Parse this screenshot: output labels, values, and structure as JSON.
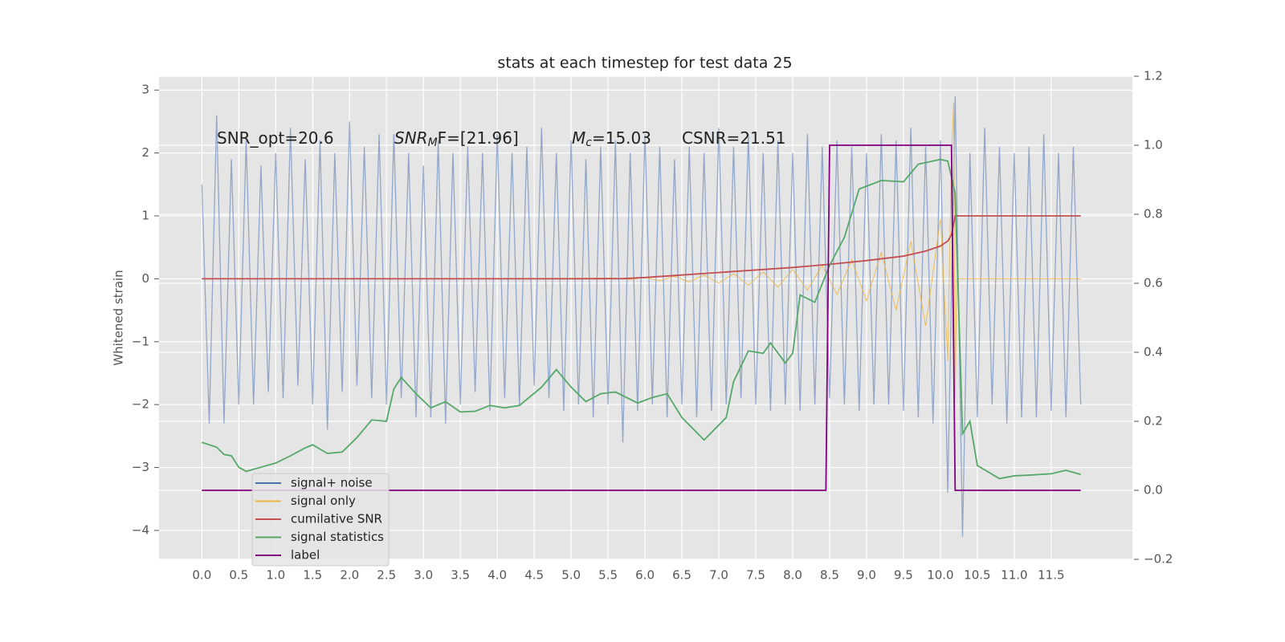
{
  "chart_data": {
    "type": "line",
    "title": "stats at each timestep for test data 25",
    "y_label": "Whitened strain",
    "annotations": [
      {
        "text": "SNR_opt=20.6"
      },
      {
        "italic": "SNR",
        "sub": "M",
        "text": "F=[21.96]"
      },
      {
        "italic": "M",
        "sub": "c",
        "text": "=15.03"
      },
      {
        "text": "CSNR=21.51"
      }
    ],
    "xlim": [
      -0.58,
      12.6
    ],
    "xticks": [
      {
        "value": 0,
        "label": "0.0"
      },
      0.5,
      {
        "value": 1,
        "label": "1.0"
      },
      1.5,
      {
        "value": 2,
        "label": "2.0"
      },
      2.5,
      {
        "value": 3,
        "label": "3.0"
      },
      3.5,
      {
        "value": 4,
        "label": "4.0"
      },
      4.5,
      {
        "value": 5,
        "label": "5.0"
      },
      5.5,
      {
        "value": 6,
        "label": "6.0"
      },
      6.5,
      {
        "value": 7,
        "label": "7.0"
      },
      7.5,
      {
        "value": 8,
        "label": "8.0"
      },
      8.5,
      {
        "value": 9,
        "label": "9.0"
      },
      9.5,
      {
        "value": 10,
        "label": "10.0"
      },
      10.5,
      {
        "value": 11,
        "label": "11.0"
      },
      11.5
    ],
    "ylim": [
      -4.46,
      3.22
    ],
    "yticks": [
      {
        "value": -4,
        "label": "−4"
      },
      {
        "value": -3,
        "label": "−3"
      },
      {
        "value": -2,
        "label": "−2"
      },
      {
        "value": -1,
        "label": "−1"
      },
      0,
      1,
      2,
      3
    ],
    "y2lim": [
      -0.2,
      1.2
    ],
    "y2ticks": [
      {
        "value": -0.2,
        "label": "−0.2"
      },
      {
        "value": 0,
        "label": "0.0"
      },
      {
        "value": 0.2,
        "label": "0.2"
      },
      {
        "value": 0.4,
        "label": "0.4"
      },
      {
        "value": 0.6,
        "label": "0.6"
      },
      {
        "value": 0.8,
        "label": "0.8"
      },
      {
        "value": 1,
        "label": "1.0"
      },
      {
        "value": 1.2,
        "label": "1.2"
      }
    ],
    "grid": true,
    "legend": "lower left",
    "series": [
      {
        "name": "signal+ noise",
        "color": "#4c72b0",
        "x": [
          0,
          0.1,
          0.2,
          0.3,
          0.4,
          0.5,
          0.6,
          0.7,
          0.8,
          0.9,
          1,
          1.1,
          1.2,
          1.3,
          1.4,
          1.5,
          1.6,
          1.7,
          1.8,
          1.9,
          2,
          2.1,
          2.2,
          2.3,
          2.4,
          2.5,
          2.6,
          2.7,
          2.8,
          2.9,
          3,
          3.1,
          3.2,
          3.3,
          3.4,
          3.5,
          3.6,
          3.7,
          3.8,
          3.9,
          4,
          4.1,
          4.2,
          4.3,
          4.4,
          4.5,
          4.6,
          4.7,
          4.8,
          4.9,
          5,
          5.1,
          5.2,
          5.3,
          5.4,
          5.5,
          5.6,
          5.7,
          5.8,
          5.9,
          6,
          6.1,
          6.2,
          6.3,
          6.4,
          6.5,
          6.6,
          6.7,
          6.8,
          6.9,
          7,
          7.1,
          7.2,
          7.3,
          7.4,
          7.5,
          7.6,
          7.7,
          7.8,
          7.9,
          8,
          8.1,
          8.2,
          8.3,
          8.4,
          8.5,
          8.6,
          8.7,
          8.8,
          8.9,
          9,
          9.1,
          9.2,
          9.3,
          9.4,
          9.5,
          9.6,
          9.7,
          9.8,
          9.9,
          10,
          10.1,
          10.2,
          10.3,
          10.4,
          10.5,
          10.6,
          10.7,
          10.8,
          10.9,
          11,
          11.1,
          11.2,
          11.3,
          11.4,
          11.5,
          11.6,
          11.7,
          11.8,
          11.9
        ],
        "values": [
          1.5,
          -2.3,
          2.6,
          -2.3,
          1.9,
          -2.0,
          2.2,
          -2.0,
          1.8,
          -1.8,
          2.0,
          -1.9,
          2.4,
          -1.7,
          1.9,
          -2.0,
          2.2,
          -2.4,
          2.0,
          -1.8,
          2.5,
          -1.7,
          2.1,
          -1.9,
          2.3,
          -2.0,
          2.3,
          -1.9,
          2.0,
          -2.2,
          1.8,
          -2.2,
          2.2,
          -2.3,
          2.0,
          -2.0,
          2.1,
          -1.8,
          2.0,
          -2.1,
          2.3,
          -1.9,
          2.0,
          -2.0,
          2.1,
          -1.7,
          2.4,
          -1.9,
          2.0,
          -2.1,
          2.2,
          -2.0,
          1.9,
          -2.2,
          2.1,
          -2.0,
          2.2,
          -2.6,
          2.0,
          -2.1,
          2.3,
          -2.0,
          2.1,
          -2.2,
          1.9,
          -2.0,
          2.1,
          -2.2,
          2.0,
          -2.1,
          2.4,
          -2.0,
          2.1,
          -1.9,
          2.3,
          -2.0,
          2.0,
          -2.1,
          2.2,
          -2.0,
          2.0,
          -2.1,
          2.3,
          -2.0,
          2.1,
          -1.9,
          2.2,
          -2.0,
          2.1,
          -2.1,
          2.0,
          -2.0,
          2.3,
          -2.0,
          2.2,
          -2.1,
          2.4,
          -2.2,
          2.1,
          -2.3,
          2.2,
          -3.4,
          2.9,
          -4.1,
          2.0,
          -2.2,
          2.4,
          -2.0,
          2.1,
          -2.3,
          2.0,
          -2.2,
          2.1,
          -2.2,
          2.3,
          -2.1,
          2.0,
          -2.2,
          2.1,
          -2.0
        ]
      },
      {
        "name": "signal only",
        "color": "#ecb540",
        "x": [
          0,
          5.6,
          5.8,
          6,
          6.2,
          6.4,
          6.6,
          6.8,
          7,
          7.2,
          7.4,
          7.6,
          7.8,
          8,
          8.2,
          8.4,
          8.6,
          8.8,
          9,
          9.2,
          9.4,
          9.6,
          9.8,
          10,
          10.1,
          10.15,
          10.18,
          10.2,
          10.22,
          11.9
        ],
        "values": [
          0,
          0.01,
          -0.01,
          0.02,
          -0.03,
          0.04,
          -0.05,
          0.06,
          -0.07,
          0.08,
          -0.1,
          0.11,
          -0.13,
          0.15,
          -0.18,
          0.21,
          -0.25,
          0.3,
          -0.35,
          0.42,
          -0.5,
          0.6,
          -0.75,
          0.95,
          -1.3,
          1.9,
          2.8,
          -1.9,
          0,
          0
        ]
      },
      {
        "name": "cumilative SNR",
        "color": "#c44e52",
        "x": [
          0,
          1,
          2,
          3,
          4,
          5,
          5.7,
          6,
          6.5,
          7,
          7.5,
          8,
          8.5,
          9,
          9.5,
          9.8,
          10,
          10.1,
          10.15,
          10.2,
          11.9
        ],
        "values": [
          0,
          0,
          0,
          0,
          0,
          0,
          0.003,
          0.02,
          0.06,
          0.1,
          0.14,
          0.18,
          0.23,
          0.29,
          0.36,
          0.44,
          0.52,
          0.6,
          0.7,
          1.0,
          1.0
        ]
      },
      {
        "name": "signal statistics",
        "color": "#55a868",
        "axis": "y2",
        "x": [
          0,
          0.2,
          0.3,
          0.4,
          0.5,
          0.6,
          0.8,
          1,
          1.2,
          1.4,
          1.5,
          1.7,
          1.9,
          2.1,
          2.3,
          2.5,
          2.6,
          2.7,
          2.9,
          3.1,
          3.3,
          3.5,
          3.7,
          3.9,
          4.1,
          4.3,
          4.6,
          4.8,
          5,
          5.2,
          5.4,
          5.6,
          5.9,
          6.1,
          6.3,
          6.5,
          6.8,
          7.1,
          7.2,
          7.4,
          7.6,
          7.7,
          7.9,
          8,
          8.1,
          8.3,
          8.5,
          8.7,
          8.9,
          9.2,
          9.5,
          9.7,
          10,
          10.1,
          10.2,
          10.3,
          10.4,
          10.5,
          10.8,
          11,
          11.2,
          11.5,
          11.7,
          11.9
        ],
        "values": [
          0.139,
          0.125,
          0.104,
          0.1,
          0.067,
          0.055,
          0.067,
          0.079,
          0.1,
          0.123,
          0.132,
          0.107,
          0.111,
          0.153,
          0.204,
          0.2,
          0.294,
          0.327,
          0.28,
          0.239,
          0.257,
          0.227,
          0.229,
          0.246,
          0.239,
          0.246,
          0.299,
          0.35,
          0.299,
          0.257,
          0.28,
          0.285,
          0.253,
          0.269,
          0.28,
          0.211,
          0.146,
          0.211,
          0.315,
          0.404,
          0.397,
          0.427,
          0.369,
          0.397,
          0.566,
          0.545,
          0.652,
          0.733,
          0.873,
          0.898,
          0.894,
          0.945,
          0.959,
          0.954,
          0.861,
          0.164,
          0.2,
          0.072,
          0.034,
          0.042,
          0.044,
          0.048,
          0.058,
          0.046
        ]
      },
      {
        "name": "label",
        "color": "#800080",
        "axis": "y2",
        "x": [
          0,
          8.45,
          8.5,
          10.15,
          10.2,
          11.9
        ],
        "values": [
          0,
          0,
          1,
          1,
          0,
          0
        ]
      }
    ]
  }
}
